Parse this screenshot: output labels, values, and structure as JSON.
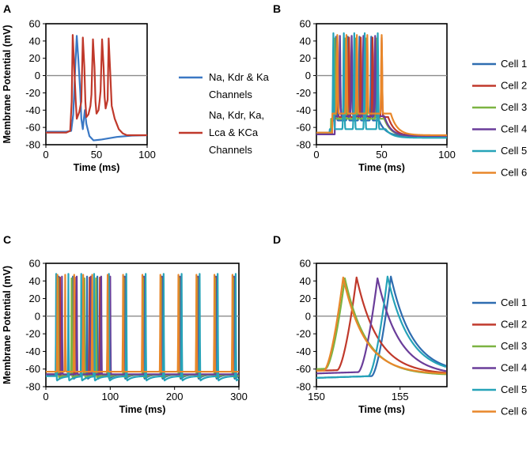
{
  "chart_data": [
    {
      "panel": "A",
      "type": "line",
      "xlabel": "Time (ms)",
      "ylabel": "Membrane Potential (mV)",
      "xlim": [
        0,
        100
      ],
      "ylim": [
        -80,
        60
      ],
      "xticks": [
        0,
        50,
        100
      ],
      "yticks": [
        -80,
        -60,
        -40,
        -20,
        0,
        20,
        40,
        60
      ],
      "zero_line": true,
      "series": [
        {
          "name": "Na, Kdr & Ka Channels",
          "legend_lines": [
            "Na, Kdr & Ka",
            "Channels"
          ],
          "color": "#3a78c4",
          "points": [
            [
              0,
              -65
            ],
            [
              20,
              -65
            ],
            [
              25,
              -64
            ],
            [
              27,
              -45
            ],
            [
              29,
              10
            ],
            [
              30.5,
              46
            ],
            [
              32,
              20
            ],
            [
              34,
              -20
            ],
            [
              35,
              -50
            ],
            [
              36.5,
              -62
            ],
            [
              37.5,
              -50
            ],
            [
              38.5,
              -40
            ],
            [
              40,
              -56
            ],
            [
              43,
              -70
            ],
            [
              47,
              -75
            ],
            [
              55,
              -74
            ],
            [
              70,
              -71
            ],
            [
              85,
              -69.5
            ],
            [
              100,
              -69
            ]
          ]
        },
        {
          "name": "Na, Kdr, Ka, Lca & KCa Channels",
          "legend_lines": [
            "Na, Kdr, Ka,",
            "Lca & KCa",
            "Channels"
          ],
          "color": "#c0392b",
          "points": [
            [
              0,
              -66
            ],
            [
              20,
              -66
            ],
            [
              24,
              -64
            ],
            [
              25.5,
              -30
            ],
            [
              26.5,
              47
            ],
            [
              28,
              10
            ],
            [
              29.5,
              -30
            ],
            [
              30.5,
              -50
            ],
            [
              33,
              -42
            ],
            [
              35,
              -30
            ],
            [
              36.5,
              44
            ],
            [
              38,
              10
            ],
            [
              39,
              -30
            ],
            [
              40,
              -48
            ],
            [
              42,
              -45
            ],
            [
              44,
              -35
            ],
            [
              45,
              -22
            ],
            [
              46.5,
              42
            ],
            [
              48,
              10
            ],
            [
              49,
              -30
            ],
            [
              50,
              -44
            ],
            [
              52,
              -40
            ],
            [
              53,
              -30
            ],
            [
              54,
              -18
            ],
            [
              55.5,
              42
            ],
            [
              57,
              10
            ],
            [
              58,
              -25
            ],
            [
              59,
              -38
            ],
            [
              61,
              -28
            ],
            [
              62,
              43
            ],
            [
              63.5,
              5
            ],
            [
              65,
              -35
            ],
            [
              68,
              -50
            ],
            [
              72,
              -62
            ],
            [
              76,
              -67
            ],
            [
              80,
              -69
            ],
            [
              88,
              -69
            ],
            [
              100,
              -69
            ]
          ]
        }
      ]
    },
    {
      "panel": "B",
      "type": "line",
      "xlabel": "Time (ms)",
      "ylabel": "",
      "xlim": [
        0,
        100
      ],
      "ylim": [
        -80,
        60
      ],
      "xticks": [
        0,
        50,
        100
      ],
      "yticks": [
        -80,
        -60,
        -40,
        -20,
        0,
        20,
        40,
        60
      ],
      "zero_line": true,
      "series": [
        {
          "name": "Cell 1",
          "color": "#2e6db0",
          "spikes": [
            15,
            24,
            33,
            42
          ],
          "start": 12,
          "end": 48,
          "baseline": -68,
          "rest": -70,
          "ahp": -52,
          "peak": 45
        },
        {
          "name": "Cell 2",
          "color": "#c0392b",
          "spikes": [
            16,
            25,
            34,
            43,
            50
          ],
          "start": 12,
          "end": 55,
          "baseline": -68,
          "rest": -70,
          "ahp": -48,
          "peak": 44
        },
        {
          "name": "Cell 3",
          "color": "#7cb342",
          "spikes": [
            14,
            22,
            30,
            38,
            46
          ],
          "start": 11,
          "end": 52,
          "baseline": -68,
          "rest": -70,
          "ahp": -50,
          "peak": 43
        },
        {
          "name": "Cell 4",
          "color": "#6a3d9a",
          "spikes": [
            18,
            27,
            36,
            45
          ],
          "start": 14,
          "end": 52,
          "baseline": -68,
          "rest": -70,
          "ahp": -47,
          "peak": 46
        },
        {
          "name": "Cell 5",
          "color": "#26a3b8",
          "spikes": [
            13,
            21,
            29,
            37,
            47
          ],
          "start": 10,
          "end": 53,
          "baseline": -66,
          "rest": -72,
          "ahp": -62,
          "peak": 49
        },
        {
          "name": "Cell 6",
          "color": "#e8872a",
          "spikes": [
            16,
            23,
            31,
            39,
            50
          ],
          "start": 12,
          "end": 57,
          "baseline": -66,
          "rest": -69,
          "ahp": -44,
          "peak": 47
        }
      ]
    },
    {
      "panel": "C",
      "type": "line",
      "xlabel": "Time (ms)",
      "ylabel": "Membrane Potential (mV)",
      "xlim": [
        0,
        300
      ],
      "ylim": [
        -80,
        60
      ],
      "xticks": [
        0,
        100,
        200,
        300
      ],
      "yticks": [
        -80,
        -60,
        -40,
        -20,
        0,
        20,
        40,
        60
      ],
      "zero_line": true,
      "series": [
        {
          "name": "Cell 1",
          "color": "#2e6db0",
          "spikes": [
            20,
            42,
            64,
            80,
            97,
            122,
            152,
            180,
            208,
            236,
            264,
            292
          ],
          "baseline": -66,
          "ahp": -72,
          "peak": 45
        },
        {
          "name": "Cell 2",
          "color": "#c0392b",
          "spikes": [
            22,
            45,
            68,
            84,
            98,
            123,
            153,
            181,
            209,
            237,
            265,
            293
          ],
          "baseline": -66,
          "ahp": -68,
          "peak": 44
        },
        {
          "name": "Cell 3",
          "color": "#7cb342",
          "spikes": [
            19,
            40,
            60,
            78,
            96,
            121,
            151,
            179,
            207,
            235,
            263,
            291
          ],
          "baseline": -66,
          "ahp": -70,
          "peak": 43
        },
        {
          "name": "Cell 4",
          "color": "#6a3d9a",
          "spikes": [
            25,
            48,
            70,
            86,
            100,
            124,
            154,
            182,
            210,
            238,
            266,
            294
          ],
          "baseline": -66,
          "ahp": -66,
          "peak": 45
        },
        {
          "name": "Cell 5",
          "color": "#26a3b8",
          "spikes": [
            16,
            35,
            55,
            75,
            98,
            125,
            155,
            183,
            211,
            239,
            267,
            295
          ],
          "baseline": -68,
          "ahp": -74,
          "peak": 48
        },
        {
          "name": "Cell 6",
          "color": "#e8872a",
          "spikes": [
            18,
            30,
            44,
            58,
            72,
            96,
            120,
            150,
            178,
            206,
            234,
            262,
            290
          ],
          "baseline": -64,
          "ahp": -63,
          "peak": 47
        }
      ]
    },
    {
      "panel": "D",
      "type": "line",
      "xlabel": "Time (ms)",
      "ylabel": "",
      "xlim": [
        150,
        157.8
      ],
      "ylim": [
        -80,
        60
      ],
      "xticks": [
        150,
        155
      ],
      "yticks": [
        -80,
        -60,
        -40,
        -20,
        0,
        20,
        40,
        60
      ],
      "zero_line": true,
      "series": [
        {
          "name": "Cell 1",
          "color": "#2e6db0",
          "peak_time": 154.45,
          "peak": 45,
          "start": -70
        },
        {
          "name": "Cell 2",
          "color": "#c0392b",
          "peak_time": 152.4,
          "peak": 44,
          "start": -62
        },
        {
          "name": "Cell 3",
          "color": "#7cb342",
          "peak_time": 151.7,
          "peak": 43,
          "start": -60
        },
        {
          "name": "Cell 4",
          "color": "#6a3d9a",
          "peak_time": 153.65,
          "peak": 43,
          "start": -65
        },
        {
          "name": "Cell 5",
          "color": "#26a3b8",
          "peak_time": 154.25,
          "peak": 45,
          "start": -70
        },
        {
          "name": "Cell 6",
          "color": "#e8872a",
          "peak_time": 151.6,
          "peak": 44,
          "start": -62
        }
      ]
    }
  ]
}
